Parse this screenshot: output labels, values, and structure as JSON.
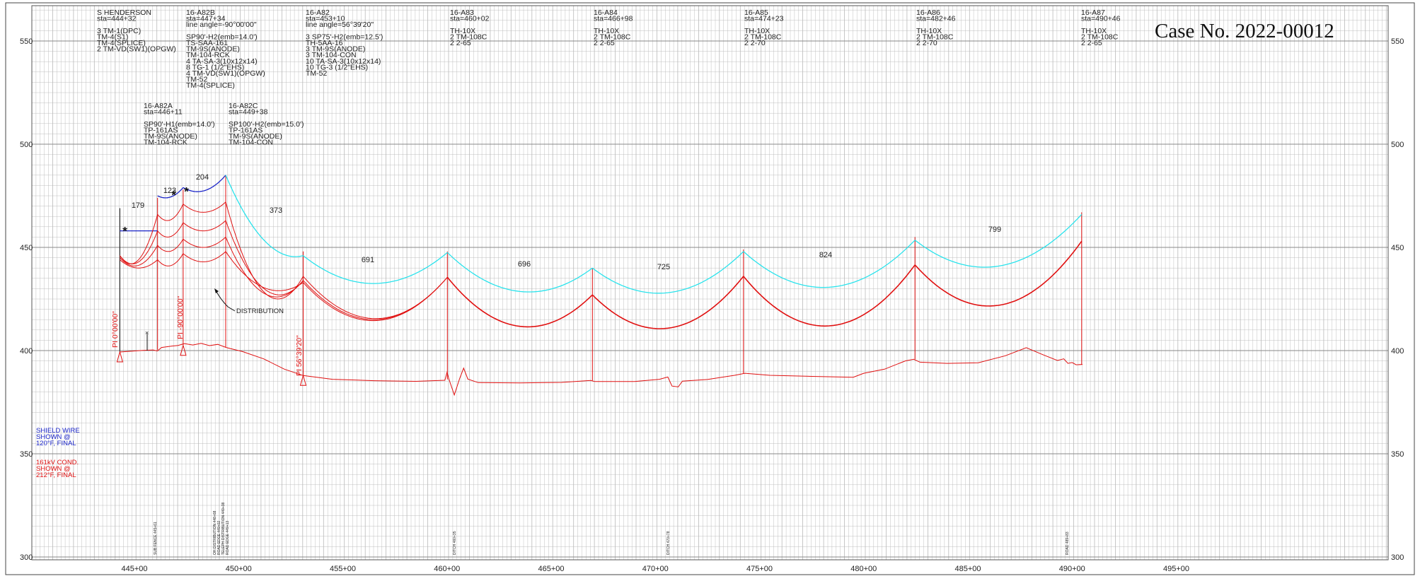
{
  "case_number": "Case No. 2022-00012",
  "axes": {
    "y_ticks": [
      300,
      350,
      400,
      450,
      500,
      550
    ],
    "y_tick_labels": [
      "300",
      "350",
      "400",
      "450",
      "500",
      "550"
    ],
    "x_tick_labels": [
      "445+00",
      "450+00",
      "455+00",
      "460+00",
      "465+00",
      "470+00",
      "475+00",
      "480+00",
      "485+00",
      "490+00",
      "495+00"
    ]
  },
  "structures": [
    {
      "lines": [
        "S HENDERSON",
        "sta=444+32",
        "",
        "3 TM-1(DPC)",
        "TM-4(S1)",
        "TM-4(SPLICE)",
        "2 TM-VD(SW1)(OPGW)"
      ]
    },
    {
      "lines": [
        "16-A82B",
        "sta=447+34",
        "line angle=-90°00'00\"",
        "",
        "SP90'-H2(emb=14.0')",
        "TS-SAA-161",
        "TM-9S(ANODE)",
        "TM-104-RCK",
        "4 TA-SA-3(10x12x14)",
        "8 TG-1 (1/2\"EHS)",
        "4 TM-VD(SW1)(OPGW)",
        "TM-52",
        "TM-4(SPLICE)"
      ]
    },
    {
      "lines": [
        "16-A82",
        "sta=453+10",
        "line angle=56°39'20\"",
        "",
        "3 SP75'-H2(emb=12.5')",
        "TH-5AA-16",
        "3 TM-9S(ANODE)",
        "3 TM-104-CON",
        "10 TA-SA-3(10x12x14)",
        "10 TG-3 (1/2\"EHS)",
        "TM-52"
      ]
    },
    {
      "lines": [
        "16-A83",
        "sta=460+02",
        "",
        "TH-10X",
        "2 TM-108C",
        "2 2-65"
      ]
    },
    {
      "lines": [
        "16-A84",
        "sta=466+98",
        "",
        "TH-10X",
        "2 TM-108C",
        "2 2-65"
      ]
    },
    {
      "lines": [
        "16-A85",
        "sta=474+23",
        "",
        "TH-10X",
        "2 TM-108C",
        "2 2-70"
      ]
    },
    {
      "lines": [
        "16-A86",
        "sta=482+46",
        "",
        "TH-10X",
        "2 TM-108C",
        "2 2-70"
      ]
    },
    {
      "lines": [
        "16-A87",
        "sta=490+46",
        "",
        "TH-10X",
        "2 TM-108C",
        "2 2-65"
      ]
    },
    {
      "lines": [
        "16-A82A",
        "sta=446+11",
        "",
        "SP90'-H1(emb=14.0')",
        "TP-161AS",
        "TM-9S(ANODE)",
        "TM-104-RCK"
      ]
    },
    {
      "lines": [
        "16-A82C",
        "sta=449+38",
        "",
        "SP100'-H2(emb=15.0')",
        "TP-161AS",
        "TM-9S(ANODE)",
        "TM-104-CON"
      ]
    }
  ],
  "span_labels": [
    "179",
    "123",
    "204",
    "373",
    "691",
    "696",
    "725",
    "824",
    "799"
  ],
  "pi_labels": [
    "PI 0°00'00\"",
    "PI -90°00'00\"",
    "PI 56°39'20\""
  ],
  "distribution_label": "DISTRIBUTION",
  "legend": {
    "shield": [
      "SHIELD WIRE",
      "SHOWN @",
      "120°F, FINAL"
    ],
    "conductor": [
      "161kV COND.",
      "SHOWN @",
      "212°F, FINAL"
    ]
  },
  "crossing_labels": [
    "SUB FENCE 445+61",
    "OH DISTRIBUTION 448+68",
    "ROAD EDGE 449+02",
    "TELEPH DISTRIBUTION 449+38",
    "ROAD EDGE 449+13",
    "DITCH 460+35",
    "DITCH 470+78",
    "ROAD 489+83"
  ],
  "colors": {
    "grid": "#b9b9b9",
    "shield_wire": "#1a24c8",
    "shield_wire_cyan": "#29e3ec",
    "conductor": "#e01010",
    "ground": "#e01010",
    "legend_blue": "#1a24c8",
    "legend_red": "#e01010"
  }
}
